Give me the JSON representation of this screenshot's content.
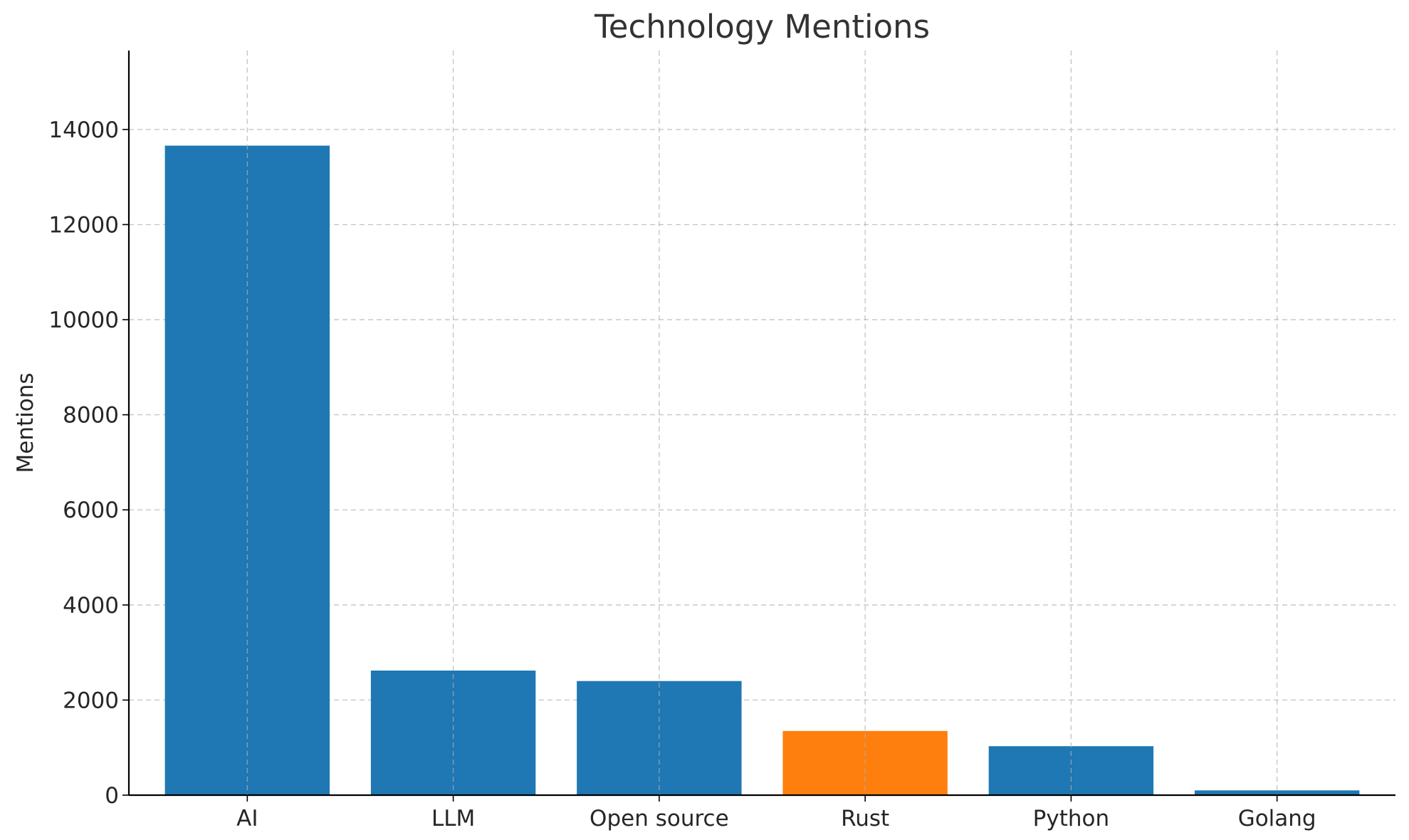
{
  "chart_data": {
    "type": "bar",
    "title": "Technology Mentions",
    "xlabel": "",
    "ylabel": "Mentions",
    "categories": [
      "AI",
      "LLM",
      "Open source",
      "Rust",
      "Python",
      "Golang"
    ],
    "values": [
      13660,
      2620,
      2400,
      1350,
      1030,
      100
    ],
    "colors": [
      "#1f77b4",
      "#1f77b4",
      "#1f77b4",
      "#ff7f0e",
      "#1f77b4",
      "#1f77b4"
    ],
    "ylim": [
      0,
      15660
    ],
    "yticks": [
      0,
      2000,
      4000,
      6000,
      8000,
      10000,
      12000,
      14000
    ],
    "grid": true
  }
}
